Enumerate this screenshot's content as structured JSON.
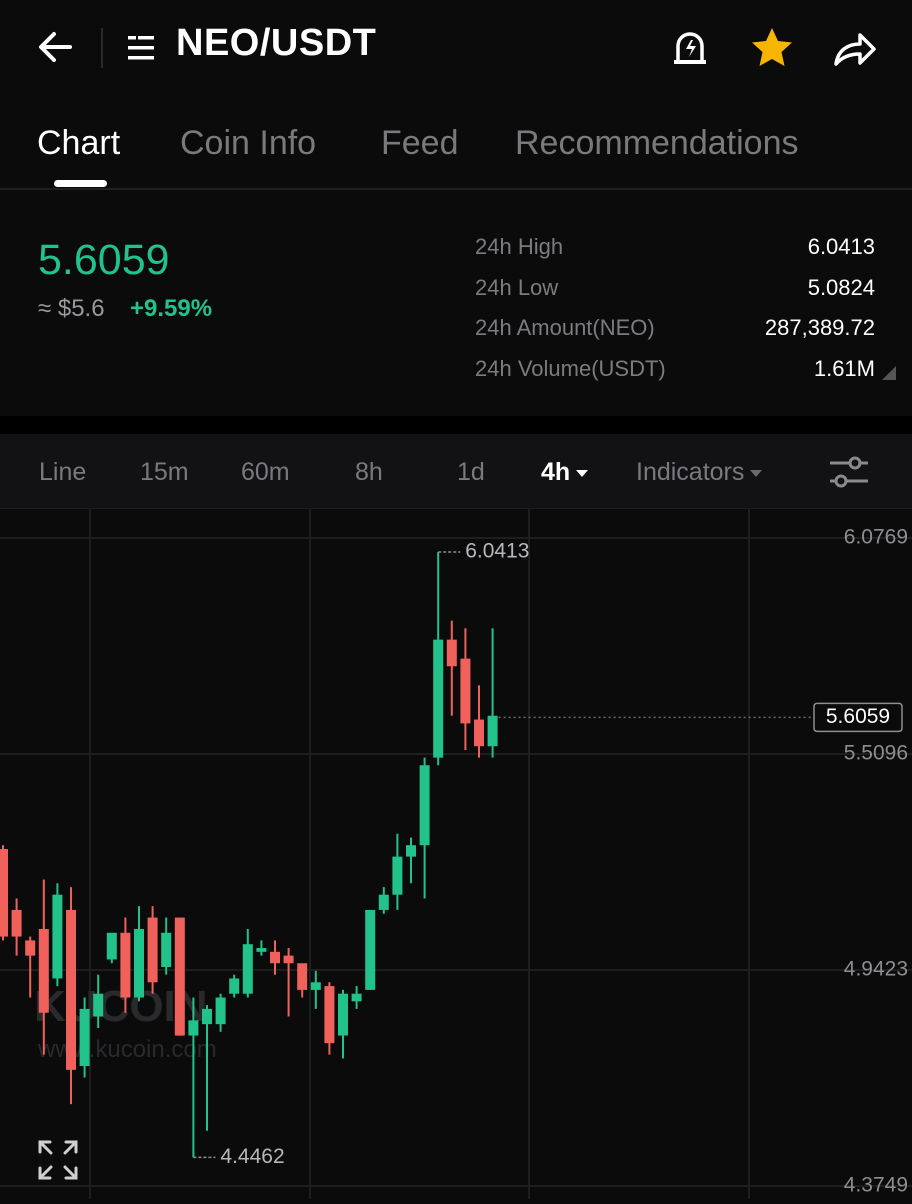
{
  "header": {
    "title": "NEO/USDT",
    "back_icon": "arrow-left-icon",
    "menu_icon": "list-menu-icon",
    "alert_icon": "price-alert-icon",
    "star_icon": "star-icon",
    "share_icon": "share-icon",
    "star_color": "#f7b500"
  },
  "tabs": [
    {
      "label": "Chart",
      "active": true
    },
    {
      "label": "Coin Info",
      "active": false
    },
    {
      "label": "Feed",
      "active": false
    },
    {
      "label": "Recommendations",
      "active": false
    }
  ],
  "ticker": {
    "price": "5.6059",
    "usd_price": "≈ $5.6",
    "change": "+9.59%",
    "up_color": "#21c38b",
    "down_color": "#f0615c"
  },
  "stats": [
    {
      "label": "24h High",
      "value": "6.0413"
    },
    {
      "label": "24h Low",
      "value": "5.0824"
    },
    {
      "label": "24h Amount(NEO)",
      "value": "287,389.72"
    },
    {
      "label": "24h Volume(USDT)",
      "value": "1.61M"
    }
  ],
  "intervals": {
    "items": [
      "Line",
      "15m",
      "60m",
      "8h",
      "1d",
      "4h"
    ],
    "active": "4h",
    "indicators_label": "Indicators"
  },
  "watermark": {
    "brand": "KUCOIN",
    "url": "www.kucoin.com"
  },
  "chart_data": {
    "type": "candlestick",
    "interval": "4h",
    "y_ticks": [
      "6.0769",
      "5.5096",
      "4.9423",
      "4.3749"
    ],
    "ylim": [
      4.3749,
      6.0769
    ],
    "last_price": "5.6059",
    "high_marker": "6.0413",
    "low_marker": "4.4462",
    "candles": [
      {
        "o": 5.26,
        "h": 5.27,
        "l": 5.02,
        "c": 5.03
      },
      {
        "o": 5.1,
        "h": 5.13,
        "l": 4.98,
        "c": 5.03
      },
      {
        "o": 5.02,
        "h": 5.03,
        "l": 4.87,
        "c": 4.98
      },
      {
        "o": 5.05,
        "h": 5.18,
        "l": 4.72,
        "c": 4.83
      },
      {
        "o": 4.92,
        "h": 5.17,
        "l": 4.9,
        "c": 5.14
      },
      {
        "o": 5.1,
        "h": 5.16,
        "l": 4.59,
        "c": 4.68
      },
      {
        "o": 4.69,
        "h": 4.87,
        "l": 4.66,
        "c": 4.84
      },
      {
        "o": 4.82,
        "h": 4.93,
        "l": 4.79,
        "c": 4.88
      },
      {
        "o": 4.97,
        "h": 5.03,
        "l": 4.96,
        "c": 5.04
      },
      {
        "o": 5.04,
        "h": 5.08,
        "l": 4.83,
        "c": 4.87
      },
      {
        "o": 4.87,
        "h": 5.11,
        "l": 4.86,
        "c": 5.05
      },
      {
        "o": 5.08,
        "h": 5.11,
        "l": 4.88,
        "c": 4.91
      },
      {
        "o": 4.95,
        "h": 5.08,
        "l": 4.93,
        "c": 5.04
      },
      {
        "o": 5.08,
        "h": 5.07,
        "l": 4.77,
        "c": 4.77
      },
      {
        "o": 4.77,
        "h": 4.87,
        "l": 4.45,
        "c": 4.81
      },
      {
        "o": 4.8,
        "h": 4.85,
        "l": 4.52,
        "c": 4.84
      },
      {
        "o": 4.8,
        "h": 4.88,
        "l": 4.78,
        "c": 4.87
      },
      {
        "o": 4.88,
        "h": 4.93,
        "l": 4.87,
        "c": 4.92
      },
      {
        "o": 4.88,
        "h": 5.05,
        "l": 4.87,
        "c": 5.01
      },
      {
        "o": 4.99,
        "h": 5.02,
        "l": 4.98,
        "c": 5.0
      },
      {
        "o": 4.99,
        "h": 5.02,
        "l": 4.93,
        "c": 4.96
      },
      {
        "o": 4.98,
        "h": 5.0,
        "l": 4.82,
        "c": 4.96
      },
      {
        "o": 4.96,
        "h": 4.95,
        "l": 4.87,
        "c": 4.89
      },
      {
        "o": 4.89,
        "h": 4.94,
        "l": 4.84,
        "c": 4.91
      },
      {
        "o": 4.9,
        "h": 4.91,
        "l": 4.72,
        "c": 4.75
      },
      {
        "o": 4.77,
        "h": 4.89,
        "l": 4.71,
        "c": 4.88
      },
      {
        "o": 4.86,
        "h": 4.9,
        "l": 4.84,
        "c": 4.88
      },
      {
        "o": 4.89,
        "h": 5.1,
        "l": 4.89,
        "c": 5.1
      },
      {
        "o": 5.1,
        "h": 5.16,
        "l": 5.09,
        "c": 5.14
      },
      {
        "o": 5.14,
        "h": 5.3,
        "l": 5.1,
        "c": 5.24
      },
      {
        "o": 5.24,
        "h": 5.29,
        "l": 5.17,
        "c": 5.27
      },
      {
        "o": 5.27,
        "h": 5.5,
        "l": 5.13,
        "c": 5.48
      },
      {
        "o": 5.5,
        "h": 6.04,
        "l": 5.48,
        "c": 5.81
      },
      {
        "o": 5.81,
        "h": 5.86,
        "l": 5.61,
        "c": 5.74
      },
      {
        "o": 5.76,
        "h": 5.84,
        "l": 5.52,
        "c": 5.59
      },
      {
        "o": 5.6,
        "h": 5.69,
        "l": 5.5,
        "c": 5.53
      },
      {
        "o": 5.53,
        "h": 5.84,
        "l": 5.5,
        "c": 5.61
      }
    ]
  }
}
